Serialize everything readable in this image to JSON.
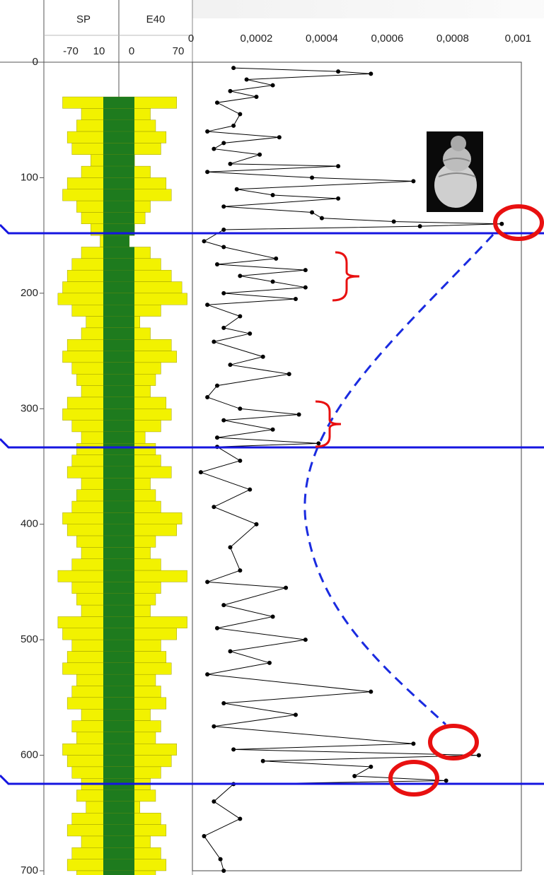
{
  "chart_data": [
    {
      "type": "area",
      "fill_colors": [
        "#f2f200",
        "#1e7b1e"
      ],
      "y": [
        0,
        10,
        20,
        30,
        40,
        50,
        60,
        70,
        80,
        90,
        100,
        110,
        120,
        130,
        140,
        150,
        160,
        170,
        180,
        190,
        200,
        210,
        220,
        230,
        240,
        250,
        260,
        270,
        280,
        290,
        300,
        310,
        320,
        330,
        340,
        350,
        360,
        370,
        380,
        390,
        400,
        410,
        420,
        430,
        440,
        450,
        460,
        470,
        480,
        490,
        500,
        510,
        520,
        530,
        540,
        550,
        560,
        570,
        580,
        590,
        600,
        610,
        620,
        630,
        640,
        650,
        660,
        670,
        680,
        690,
        700
      ],
      "ylim": [
        0,
        700
      ],
      "yticks": [
        0,
        100,
        200,
        300,
        400,
        500,
        600,
        700
      ],
      "series": [
        {
          "name": "SP",
          "xlim": [
            -70,
            10
          ],
          "xticks": [
            -70,
            10
          ],
          "values": [
            10,
            10,
            10,
            -50,
            -30,
            -35,
            -45,
            -40,
            -20,
            -30,
            -45,
            -50,
            -35,
            -30,
            -20,
            -10,
            -30,
            -40,
            -45,
            -50,
            -55,
            -40,
            -25,
            -30,
            -45,
            -50,
            -40,
            -35,
            -30,
            -45,
            -50,
            -40,
            -30,
            -35,
            -40,
            -45,
            -30,
            -35,
            -40,
            -50,
            -45,
            -35,
            -30,
            -40,
            -55,
            -40,
            -35,
            -30,
            -55,
            -50,
            -40,
            -45,
            -50,
            -35,
            -40,
            -45,
            -30,
            -40,
            -35,
            -50,
            -45,
            -40,
            -30,
            -35,
            -25,
            -40,
            -45,
            -30,
            -40,
            -45,
            -35
          ]
        },
        {
          "name": "E40",
          "xlim": [
            0,
            70
          ],
          "xticks": [
            0,
            70
          ],
          "values": [
            0,
            0,
            0,
            55,
            30,
            35,
            45,
            40,
            15,
            30,
            45,
            50,
            30,
            25,
            15,
            10,
            30,
            40,
            50,
            60,
            65,
            40,
            20,
            30,
            50,
            55,
            40,
            35,
            30,
            45,
            50,
            40,
            25,
            35,
            40,
            50,
            30,
            35,
            40,
            60,
            55,
            35,
            30,
            40,
            65,
            40,
            35,
            30,
            65,
            55,
            40,
            45,
            50,
            35,
            40,
            45,
            30,
            40,
            35,
            55,
            50,
            40,
            30,
            35,
            20,
            40,
            45,
            30,
            40,
            45,
            35
          ]
        }
      ]
    },
    {
      "type": "line",
      "color": "#000000",
      "xlim": [
        0,
        0.00101
      ],
      "xticks": [
        0,
        {
          "value": 0.0002,
          "label": "0,0002"
        },
        {
          "value": 0.0004,
          "label": "0,0004"
        },
        {
          "value": 0.0006,
          "label": "0,0006"
        },
        {
          "value": 0.0008,
          "label": "0,0008"
        },
        {
          "value": 0.001,
          "label": "0,001"
        }
      ],
      "ylim": [
        0,
        700
      ],
      "y": [
        5,
        8,
        10,
        15,
        20,
        25,
        30,
        35,
        45,
        55,
        60,
        65,
        70,
        75,
        80,
        88,
        90,
        95,
        100,
        103,
        110,
        115,
        118,
        125,
        130,
        135,
        138,
        140,
        142,
        145,
        155,
        160,
        170,
        175,
        180,
        185,
        190,
        195,
        200,
        205,
        210,
        220,
        230,
        235,
        242,
        255,
        262,
        270,
        280,
        290,
        300,
        305,
        310,
        318,
        325,
        330,
        333,
        345,
        355,
        370,
        385,
        400,
        420,
        440,
        450,
        455,
        470,
        480,
        490,
        500,
        510,
        520,
        530,
        545,
        555,
        565,
        575,
        590,
        595,
        600,
        605,
        610,
        618,
        622,
        625,
        640,
        655,
        670,
        690,
        700
      ],
      "values": [
        0.00013,
        0.00045,
        0.00055,
        0.00017,
        0.00025,
        0.00012,
        0.0002,
        8e-05,
        0.00015,
        0.00013,
        5e-05,
        0.00027,
        0.0001,
        7e-05,
        0.00021,
        0.00012,
        0.00045,
        5e-05,
        0.00037,
        0.00068,
        0.00014,
        0.00025,
        0.00045,
        0.0001,
        0.00037,
        0.0004,
        0.00062,
        0.00095,
        0.0007,
        0.0001,
        4e-05,
        0.0001,
        0.00026,
        8e-05,
        0.00035,
        0.00015,
        0.00025,
        0.00035,
        0.0001,
        0.00032,
        5e-05,
        0.00015,
        0.0001,
        0.00018,
        7e-05,
        0.00022,
        0.00012,
        0.0003,
        8e-05,
        5e-05,
        0.00015,
        0.00033,
        0.0001,
        0.00025,
        8e-05,
        0.00039,
        8e-05,
        0.00015,
        3e-05,
        0.00018,
        7e-05,
        0.0002,
        0.00012,
        0.00015,
        5e-05,
        0.00029,
        0.0001,
        0.00025,
        8e-05,
        0.00035,
        0.00012,
        0.00024,
        5e-05,
        0.00055,
        0.0001,
        0.00032,
        7e-05,
        0.00068,
        0.00013,
        0.00088,
        0.00022,
        0.00055,
        0.0005,
        0.00078,
        0.00013,
        7e-05,
        0.00015,
        4e-05,
        9e-05,
        0.0001
      ]
    }
  ]
}
